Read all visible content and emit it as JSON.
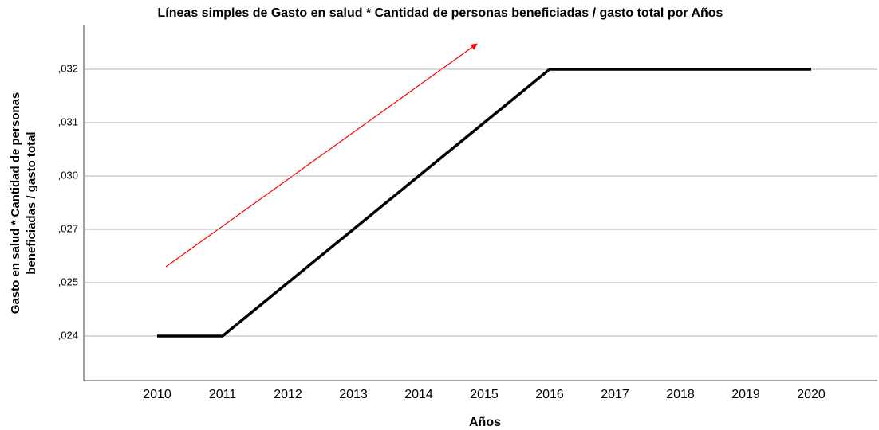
{
  "chart_data": {
    "type": "line",
    "title": "Líneas simples de Gasto en salud * Cantidad de personas beneficiadas / gasto total por Años",
    "xlabel": "Años",
    "ylabel": [
      "Gasto en salud * Cantidad de personas",
      "beneficiadas / gasto total"
    ],
    "categories": [
      "2010",
      "2011",
      "2012",
      "2013",
      "2014",
      "2015",
      "2016",
      "2017",
      "2018",
      "2019",
      "2020"
    ],
    "series": [
      {
        "name": "Gasto en salud * Cantidad de personas beneficiadas / gasto total",
        "color": "#000000",
        "values": [
          0.024,
          0.024,
          0.025,
          0.027,
          0.03,
          0.031,
          0.032,
          0.032,
          0.032,
          0.032,
          0.032
        ]
      }
    ],
    "ylim": [
      0.0233,
      0.0326
    ],
    "yticks": [
      {
        "value": 0.024,
        "label": ",024"
      },
      {
        "value": 0.025,
        "label": ",025"
      },
      {
        "value": 0.027,
        "label": ",027"
      },
      {
        "value": 0.03,
        "label": ",030"
      },
      {
        "value": 0.031,
        "label": ",031"
      },
      {
        "value": 0.032,
        "label": ",032"
      }
    ],
    "grid": true
  }
}
